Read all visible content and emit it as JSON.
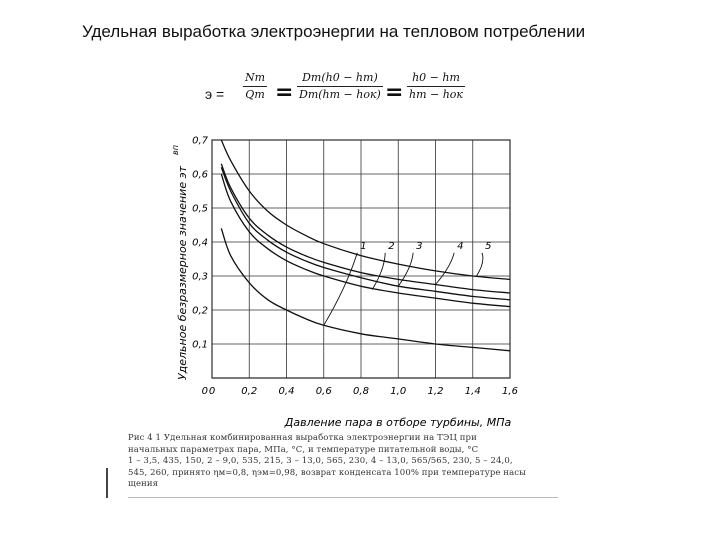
{
  "slide": {
    "title": "Удельная выработка  электроэнергии на тепловом потреблении"
  },
  "formula": {
    "lhs": "э =",
    "frac1_num": "Nт",
    "frac1_den": "Qт",
    "frac2_num": "Dт(h0 − hт)",
    "frac2_den": "Dт(hт − hок)",
    "frac3_num": "h0 − hт",
    "frac3_den": "hт − hок",
    "equals": "="
  },
  "chart_data": {
    "type": "line",
    "ylabel": "Удельное безразмерное значение эт",
    "ylabel_superscript": "вп",
    "xlabel": "Давление пара в отборе турбины, МПа",
    "xlim": [
      0,
      1.6
    ],
    "ylim": [
      0,
      0.7
    ],
    "xticks": [
      0,
      0.2,
      0.4,
      0.6,
      0.8,
      1.0,
      1.2,
      1.4,
      1.6
    ],
    "xtick_labels": [
      "0",
      "0,2",
      "0,4",
      "0,6",
      "0,8",
      "1,0",
      "1,2",
      "1,4",
      "1,6"
    ],
    "yticks": [
      0.1,
      0.2,
      0.3,
      0.4,
      0.5,
      0.6,
      0.7
    ],
    "ytick_labels": [
      "0,1",
      "0,2",
      "0,3",
      "0,4",
      "0,5",
      "0,6",
      "0,7"
    ],
    "grid": true,
    "series": [
      {
        "name": "1",
        "x": [
          0.05,
          0.1,
          0.2,
          0.3,
          0.4,
          0.5,
          0.6,
          0.8,
          1.0,
          1.2,
          1.4,
          1.6
        ],
        "y": [
          0.44,
          0.36,
          0.28,
          0.23,
          0.2,
          0.175,
          0.155,
          0.13,
          0.115,
          0.1,
          0.09,
          0.08
        ]
      },
      {
        "name": "2",
        "x": [
          0.05,
          0.1,
          0.2,
          0.3,
          0.4,
          0.5,
          0.6,
          0.8,
          1.0,
          1.2,
          1.4,
          1.6
        ],
        "y": [
          0.6,
          0.52,
          0.43,
          0.38,
          0.345,
          0.32,
          0.3,
          0.27,
          0.25,
          0.235,
          0.22,
          0.21
        ]
      },
      {
        "name": "3",
        "x": [
          0.05,
          0.1,
          0.2,
          0.3,
          0.4,
          0.5,
          0.6,
          0.8,
          1.0,
          1.2,
          1.4,
          1.6
        ],
        "y": [
          0.62,
          0.55,
          0.455,
          0.405,
          0.37,
          0.345,
          0.325,
          0.295,
          0.27,
          0.255,
          0.24,
          0.23
        ]
      },
      {
        "name": "4",
        "x": [
          0.05,
          0.1,
          0.2,
          0.3,
          0.4,
          0.5,
          0.6,
          0.8,
          1.0,
          1.2,
          1.4,
          1.6
        ],
        "y": [
          0.63,
          0.56,
          0.47,
          0.42,
          0.385,
          0.36,
          0.34,
          0.31,
          0.29,
          0.275,
          0.26,
          0.25
        ]
      },
      {
        "name": "5",
        "x": [
          0.05,
          0.1,
          0.2,
          0.3,
          0.4,
          0.5,
          0.6,
          0.8,
          1.0,
          1.2,
          1.4,
          1.6
        ],
        "y": [
          0.7,
          0.64,
          0.55,
          0.49,
          0.45,
          0.42,
          0.395,
          0.36,
          0.335,
          0.315,
          0.3,
          0.29
        ]
      }
    ],
    "leaders": [
      {
        "label": "1",
        "label_at": [
          0.78,
          0.38
        ],
        "target": [
          0.6,
          0.155
        ]
      },
      {
        "label": "2",
        "label_at": [
          0.93,
          0.38
        ],
        "target": [
          0.86,
          0.26
        ]
      },
      {
        "label": "3",
        "label_at": [
          1.08,
          0.38
        ],
        "target": [
          1.0,
          0.27
        ]
      },
      {
        "label": "4",
        "label_at": [
          1.3,
          0.38
        ],
        "target": [
          1.2,
          0.275
        ]
      },
      {
        "label": "5",
        "label_at": [
          1.45,
          0.38
        ],
        "target": [
          1.42,
          0.3
        ]
      }
    ]
  },
  "caption": {
    "line1": "Рис 4 1  Удельная комбинированная выработка электроэнергии на ТЭЦ при",
    "line2": "начальных параметрах пара, МПа, °С, и температуре питательной воды, °С",
    "line3": "1 – 3,5, 435, 150,  2 – 9,0, 535, 215,  3 – 13,0, 565, 230,  4 – 13,0, 565/565, 230,  5 – 24,0,",
    "line4": "545, 260, принято ηм=0,8, ηэм=0,98, возврат конденсата 100% при температуре насы",
    "line5": "щения"
  }
}
